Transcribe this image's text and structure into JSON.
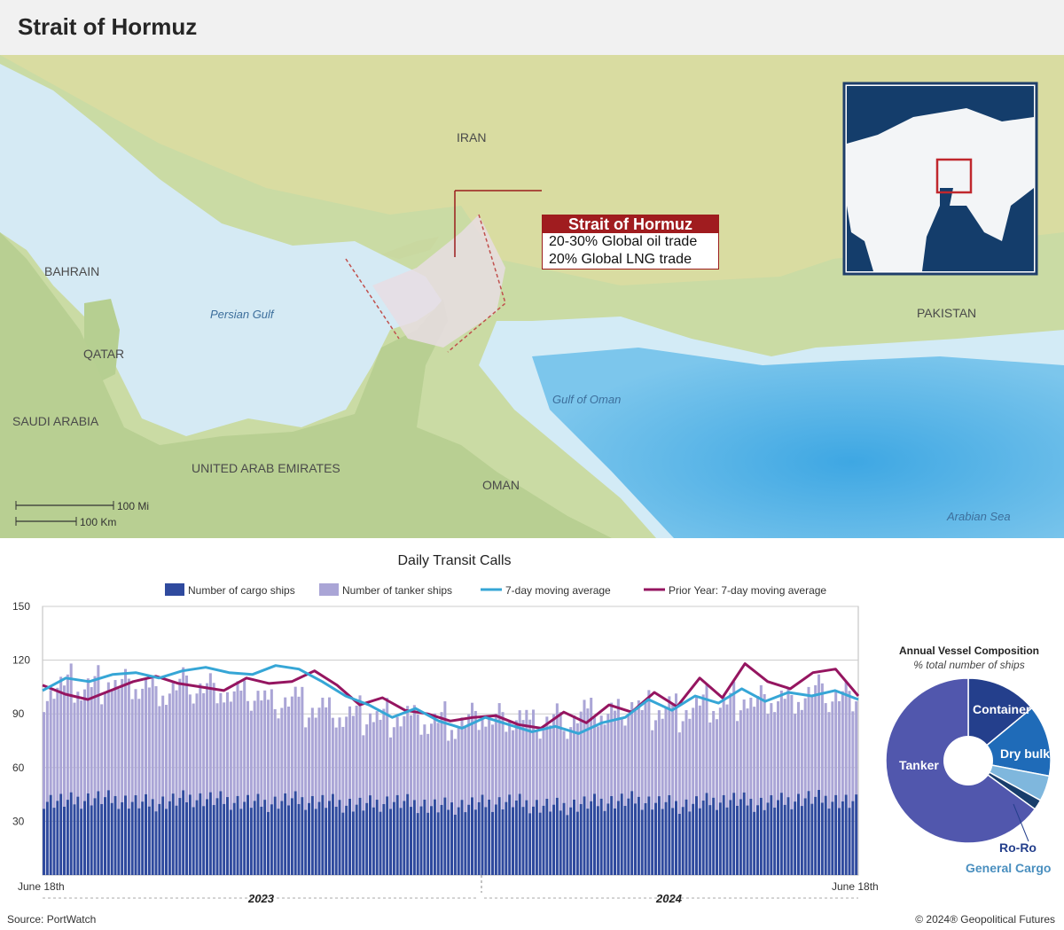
{
  "title": "Strait of Hormuz",
  "map": {
    "labels": {
      "iran": "IRAN",
      "bahrain": "BAHRAIN",
      "qatar": "QATAR",
      "saudi": "SAUDI ARABIA",
      "uae": "UNITED ARAB EMIRATES",
      "oman": "OMAN",
      "pakistan": "PAKISTAN",
      "persian_gulf": "Persian Gulf",
      "gulf_of_oman": "Gulf of Oman",
      "arabian_sea": "Arabian Sea"
    },
    "scale": {
      "mi": "100 Mi",
      "km": "100 Km"
    },
    "callout": {
      "title": "Strait of Hormuz",
      "line1": "20-30% Global oil trade",
      "line2": "20% Global LNG trade"
    },
    "colors": {
      "land": "#c9d8a0",
      "water": "#d6ebf5",
      "deep": "#5db7e6",
      "highlight": "#b4201f"
    }
  },
  "chart_data": [
    {
      "type": "bar",
      "title": "Daily Transit Calls",
      "legend": {
        "cargo": "Number of cargo ships",
        "tanker": "Number of tanker ships",
        "ma": "7-day moving average",
        "prior": "Prior Year: 7-day moving average"
      },
      "ylim": [
        0,
        150
      ],
      "yticks": [
        30,
        60,
        90,
        120,
        150
      ],
      "x_start_label": "June 18th",
      "x_end_label": "June 18th",
      "year_labels": [
        "2023",
        "2024"
      ],
      "colors": {
        "cargo": "#2f4a9e",
        "tanker": "#aaa5d6",
        "ma": "#36a6d6",
        "prior": "#951560"
      },
      "cargo_avg": [
        42,
        41,
        43,
        42,
        40,
        41,
        43,
        42,
        41,
        40,
        42,
        41,
        40,
        39,
        41,
        40,
        38,
        39,
        40,
        41,
        39,
        38,
        40,
        41,
        42,
        40,
        39,
        41,
        42,
        40,
        41,
        43,
        42,
        40
      ],
      "tanker_avg": [
        62,
        64,
        63,
        65,
        64,
        62,
        63,
        61,
        60,
        58,
        55,
        52,
        50,
        49,
        48,
        47,
        47,
        46,
        48,
        47,
        46,
        48,
        50,
        49,
        52,
        51,
        54,
        53,
        55,
        57,
        56,
        58,
        59,
        58
      ],
      "ma_points": [
        103,
        110,
        108,
        112,
        113,
        110,
        114,
        116,
        113,
        112,
        117,
        115,
        108,
        100,
        95,
        88,
        93,
        86,
        82,
        88,
        84,
        80,
        83,
        79,
        85,
        88,
        98,
        92,
        100,
        96,
        104,
        97,
        102,
        100,
        103,
        98
      ],
      "prior_points": [
        106,
        101,
        98,
        103,
        108,
        111,
        107,
        105,
        103,
        110,
        107,
        108,
        114,
        106,
        95,
        99,
        92,
        90,
        86,
        88,
        89,
        84,
        82,
        91,
        85,
        95,
        91,
        102,
        94,
        110,
        99,
        118,
        108,
        104,
        113,
        115,
        100
      ]
    },
    {
      "type": "pie",
      "title": "Annual Vessel Composition",
      "subtitle": "% total number of ships",
      "categories": [
        "Container",
        "Dry bulk",
        "General Cargo",
        "Ro-Ro",
        "Tanker"
      ],
      "values": [
        14,
        14,
        5,
        2,
        65
      ],
      "colors": [
        "#243f8c",
        "#1f6bb8",
        "#7fb7dd",
        "#183d6b",
        "#5157ad"
      ]
    }
  ],
  "footer": {
    "source": "Source: PortWatch",
    "copyright": "© 2024® Geopolitical Futures"
  }
}
